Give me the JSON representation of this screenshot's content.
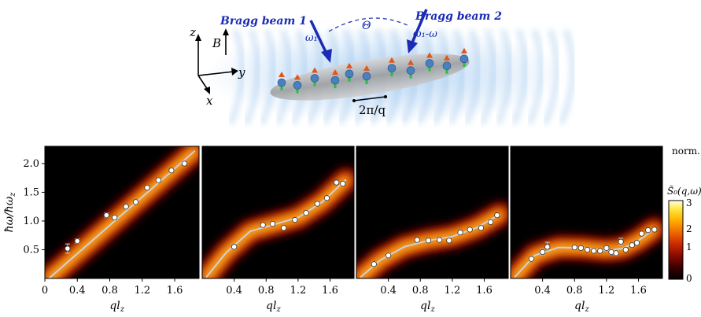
{
  "schematic": {
    "beam1_label": "Bragg beam 1",
    "beam2_label": "Bragg beam 2",
    "omega1": "ω₁",
    "omega_diff": "ω₁-ω",
    "theta": "Θ",
    "axis_z": "z",
    "axis_y": "y",
    "axis_x": "x",
    "field_B": "B",
    "wavelength": "2π/q",
    "colors": {
      "beam": "#1a2bb5",
      "spin_up": "#e0561b",
      "atom": "#4a7fc0",
      "spin_green": "#22c23a"
    }
  },
  "colorbar": {
    "title_line1": "norm.",
    "title_line2": "S̃₀(q,ω)",
    "ticks": [
      "3",
      "2",
      "1",
      "0"
    ],
    "range": [
      0,
      3
    ],
    "colormap": [
      "#000000",
      "#3a0000",
      "#8a0a00",
      "#cc2a00",
      "#f06a00",
      "#ffb000",
      "#ffe23a",
      "#fff6a0",
      "#ffffff"
    ]
  },
  "chart_data": [
    {
      "type": "scatter",
      "panel": 1,
      "xlabel": "ql_z",
      "ylabel": "ħω/ħω_z",
      "xlim": [
        0,
        1.9
      ],
      "ylim": [
        0,
        2.3
      ],
      "xticks": [
        "0",
        "0.4",
        "0.8",
        "1.2",
        "1.6"
      ],
      "yticks": [
        "0.5",
        "1.0",
        "1.5",
        "2.0"
      ],
      "points": [
        {
          "x": 0.28,
          "y": 0.52,
          "err": 0.08
        },
        {
          "x": 0.4,
          "y": 0.65,
          "err": 0.04
        },
        {
          "x": 0.76,
          "y": 1.1,
          "err": 0.04
        },
        {
          "x": 0.86,
          "y": 1.06,
          "err": 0.02
        },
        {
          "x": 1.0,
          "y": 1.25,
          "err": 0.02
        },
        {
          "x": 1.12,
          "y": 1.33,
          "err": 0.02
        },
        {
          "x": 1.26,
          "y": 1.58,
          "err": 0.02
        },
        {
          "x": 1.4,
          "y": 1.71,
          "err": 0.02
        },
        {
          "x": 1.56,
          "y": 1.88,
          "err": 0.02
        },
        {
          "x": 1.72,
          "y": 2.0,
          "err": 0.02
        }
      ],
      "curve": [
        [
          0.05,
          0.0
        ],
        [
          1.85,
          2.22
        ]
      ]
    },
    {
      "type": "scatter",
      "panel": 2,
      "xlabel": "ql_z",
      "xlim": [
        0,
        1.9
      ],
      "ylim": [
        0,
        2.3
      ],
      "xticks": [
        "0.4",
        "0.8",
        "1.2",
        "1.6"
      ],
      "points": [
        {
          "x": 0.4,
          "y": 0.55,
          "err": 0.04
        },
        {
          "x": 0.76,
          "y": 0.93,
          "err": 0.02
        },
        {
          "x": 0.88,
          "y": 0.95,
          "err": 0.02
        },
        {
          "x": 1.02,
          "y": 0.88,
          "err": 0.02
        },
        {
          "x": 1.16,
          "y": 1.02,
          "err": 0.02
        },
        {
          "x": 1.3,
          "y": 1.14,
          "err": 0.02
        },
        {
          "x": 1.44,
          "y": 1.3,
          "err": 0.02
        },
        {
          "x": 1.56,
          "y": 1.4,
          "err": 0.02
        },
        {
          "x": 1.68,
          "y": 1.67,
          "err": 0.02
        },
        {
          "x": 1.76,
          "y": 1.65,
          "err": 0.02
        }
      ],
      "curve": [
        [
          0.05,
          0.02
        ],
        [
          0.3,
          0.45
        ],
        [
          0.6,
          0.82
        ],
        [
          0.9,
          0.94
        ],
        [
          1.2,
          1.06
        ],
        [
          1.5,
          1.33
        ],
        [
          1.8,
          1.72
        ]
      ]
    },
    {
      "type": "scatter",
      "panel": 3,
      "xlabel": "ql_z",
      "xlim": [
        0,
        1.9
      ],
      "ylim": [
        0,
        2.3
      ],
      "xticks": [
        "0.4",
        "0.8",
        "1.2",
        "1.6"
      ],
      "points": [
        {
          "x": 0.22,
          "y": 0.25,
          "err": 0.04
        },
        {
          "x": 0.4,
          "y": 0.4,
          "err": 0.04
        },
        {
          "x": 0.76,
          "y": 0.67,
          "err": 0.02
        },
        {
          "x": 0.9,
          "y": 0.66,
          "err": 0.02
        },
        {
          "x": 1.04,
          "y": 0.67,
          "err": 0.02
        },
        {
          "x": 1.16,
          "y": 0.66,
          "err": 0.02
        },
        {
          "x": 1.3,
          "y": 0.8,
          "err": 0.02
        },
        {
          "x": 1.42,
          "y": 0.85,
          "err": 0.02
        },
        {
          "x": 1.56,
          "y": 0.88,
          "err": 0.02
        },
        {
          "x": 1.68,
          "y": 0.98,
          "err": 0.02
        },
        {
          "x": 1.76,
          "y": 1.1,
          "err": 0.02
        }
      ],
      "curve": [
        [
          0.05,
          0.02
        ],
        [
          0.3,
          0.32
        ],
        [
          0.6,
          0.55
        ],
        [
          0.9,
          0.66
        ],
        [
          1.2,
          0.73
        ],
        [
          1.5,
          0.88
        ],
        [
          1.8,
          1.12
        ]
      ]
    },
    {
      "type": "scatter",
      "panel": 4,
      "xlabel": "ql_z",
      "xlim": [
        0,
        1.9
      ],
      "ylim": [
        0,
        2.3
      ],
      "xticks": [
        "0.4",
        "0.8",
        "1.2",
        "1.6"
      ],
      "points": [
        {
          "x": 0.26,
          "y": 0.34,
          "err": 0.04
        },
        {
          "x": 0.4,
          "y": 0.46,
          "err": 0.05
        },
        {
          "x": 0.46,
          "y": 0.55,
          "err": 0.08
        },
        {
          "x": 0.8,
          "y": 0.54,
          "err": 0.02
        },
        {
          "x": 0.88,
          "y": 0.53,
          "err": 0.02
        },
        {
          "x": 0.96,
          "y": 0.5,
          "err": 0.02
        },
        {
          "x": 1.04,
          "y": 0.48,
          "err": 0.02
        },
        {
          "x": 1.12,
          "y": 0.48,
          "err": 0.02
        },
        {
          "x": 1.2,
          "y": 0.53,
          "err": 0.02
        },
        {
          "x": 1.26,
          "y": 0.46,
          "err": 0.04
        },
        {
          "x": 1.32,
          "y": 0.44,
          "err": 0.04
        },
        {
          "x": 1.38,
          "y": 0.64,
          "err": 0.06
        },
        {
          "x": 1.44,
          "y": 0.5,
          "err": 0.02
        },
        {
          "x": 1.52,
          "y": 0.58,
          "err": 0.02
        },
        {
          "x": 1.58,
          "y": 0.62,
          "err": 0.02
        },
        {
          "x": 1.64,
          "y": 0.78,
          "err": 0.02
        },
        {
          "x": 1.72,
          "y": 0.84,
          "err": 0.02
        },
        {
          "x": 1.8,
          "y": 0.85,
          "err": 0.02
        }
      ],
      "curve": [
        [
          0.05,
          0.02
        ],
        [
          0.3,
          0.4
        ],
        [
          0.6,
          0.54
        ],
        [
          0.9,
          0.53
        ],
        [
          1.2,
          0.49
        ],
        [
          1.4,
          0.52
        ],
        [
          1.6,
          0.66
        ],
        [
          1.8,
          0.86
        ]
      ]
    }
  ]
}
